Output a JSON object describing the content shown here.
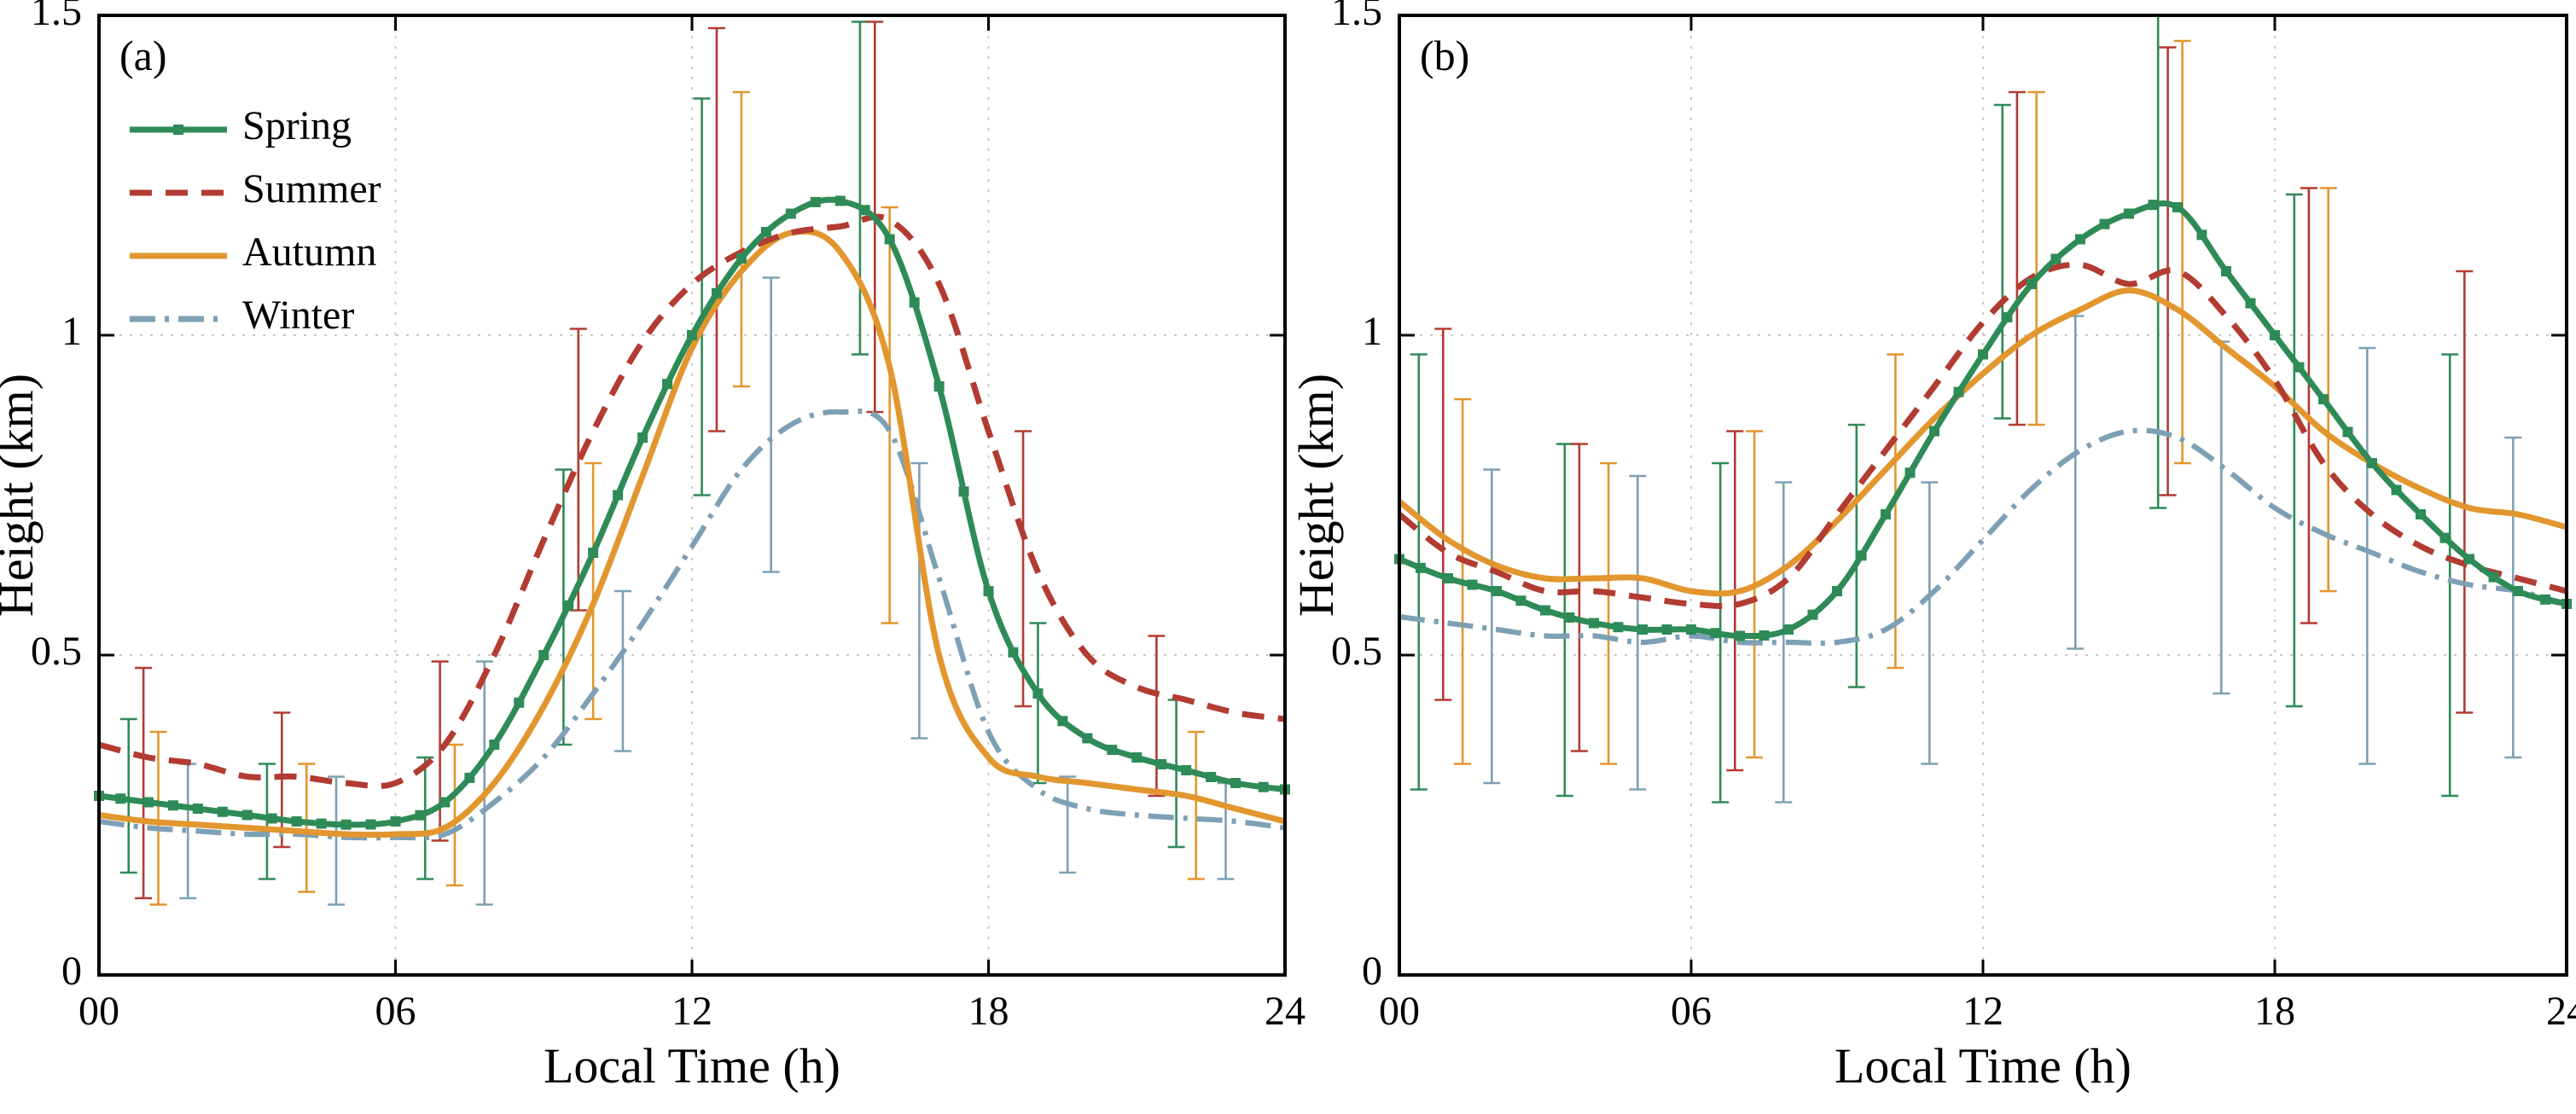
{
  "figure": {
    "background": "#ffffff",
    "axis_color": "#000000",
    "grid_color": "#c8c8c8",
    "xlabel": "Local Time (h)",
    "ylabel": "Height (km)",
    "xlim": [
      0,
      24
    ],
    "ylim": [
      0,
      1.5
    ],
    "x_ticks": {
      "values": [
        0,
        6,
        12,
        18,
        24
      ],
      "labels": [
        "00",
        "06",
        "12",
        "18",
        "24"
      ]
    },
    "y_ticks": {
      "values": [
        0,
        0.5,
        1,
        1.5
      ],
      "labels": [
        "0",
        "0.5",
        "1",
        "1.5"
      ]
    },
    "grid_x": [
      6,
      12,
      18
    ],
    "grid_y": [
      0.5,
      1.0
    ],
    "grid_style": "dotted",
    "legend_position": "upper-left"
  },
  "series_styles": [
    {
      "name": "Spring",
      "color": "#2e8b57",
      "dash": "solid",
      "marker": "square"
    },
    {
      "name": "Summer",
      "color": "#b23b32",
      "dash": "dashed",
      "marker": "none"
    },
    {
      "name": "Autumn",
      "color": "#e2962e",
      "dash": "solid",
      "marker": "none"
    },
    {
      "name": "Winter",
      "color": "#7ea0b5",
      "dash": "dashdot",
      "marker": "none"
    }
  ],
  "chart_data": [
    {
      "type": "line",
      "panel_label": "(a)",
      "legend": true,
      "xlabel": "Local Time (h)",
      "ylabel": "Height (km)",
      "xlim": [
        0,
        24
      ],
      "ylim": [
        0,
        1.5
      ],
      "x": [
        0,
        1,
        2,
        3,
        4,
        5,
        6,
        7,
        8,
        9,
        10,
        11,
        12,
        13,
        14,
        15,
        16,
        17,
        18,
        19,
        20,
        21,
        22,
        23,
        24
      ],
      "series": [
        {
          "name": "Spring",
          "values": [
            0.28,
            0.27,
            0.26,
            0.25,
            0.24,
            0.235,
            0.24,
            0.27,
            0.36,
            0.5,
            0.66,
            0.84,
            1.0,
            1.12,
            1.19,
            1.21,
            1.15,
            0.92,
            0.6,
            0.44,
            0.37,
            0.34,
            0.32,
            0.3,
            0.29
          ]
        },
        {
          "name": "Summer",
          "values": [
            0.36,
            0.34,
            0.33,
            0.31,
            0.31,
            0.3,
            0.3,
            0.36,
            0.5,
            0.68,
            0.85,
            0.99,
            1.08,
            1.13,
            1.16,
            1.17,
            1.18,
            1.08,
            0.85,
            0.63,
            0.5,
            0.45,
            0.43,
            0.41,
            0.4
          ]
        },
        {
          "name": "Autumn",
          "values": [
            0.25,
            0.24,
            0.235,
            0.23,
            0.225,
            0.22,
            0.22,
            0.23,
            0.3,
            0.42,
            0.58,
            0.78,
            0.98,
            1.1,
            1.16,
            1.13,
            0.95,
            0.5,
            0.34,
            0.31,
            0.3,
            0.29,
            0.28,
            0.26,
            0.24
          ]
        },
        {
          "name": "Winter",
          "values": [
            0.24,
            0.23,
            0.225,
            0.22,
            0.22,
            0.215,
            0.215,
            0.22,
            0.27,
            0.34,
            0.44,
            0.55,
            0.67,
            0.79,
            0.86,
            0.88,
            0.85,
            0.62,
            0.38,
            0.29,
            0.26,
            0.25,
            0.245,
            0.24,
            0.23
          ]
        }
      ],
      "error_bars": [
        {
          "series": "Spring",
          "points": [
            [
              0.6,
              0.16,
              0.4
            ],
            [
              3.4,
              0.15,
              0.33
            ],
            [
              6.6,
              0.15,
              0.34
            ],
            [
              9.4,
              0.36,
              0.79
            ],
            [
              12.2,
              0.75,
              1.37
            ],
            [
              15.4,
              0.97,
              1.49
            ],
            [
              19.0,
              0.3,
              0.55
            ],
            [
              21.8,
              0.2,
              0.43
            ]
          ]
        },
        {
          "series": "Summer",
          "points": [
            [
              0.9,
              0.12,
              0.48
            ],
            [
              3.7,
              0.2,
              0.41
            ],
            [
              6.9,
              0.21,
              0.49
            ],
            [
              9.7,
              0.57,
              1.01
            ],
            [
              12.5,
              0.85,
              1.48
            ],
            [
              15.7,
              0.88,
              1.49
            ],
            [
              18.7,
              0.42,
              0.85
            ],
            [
              21.4,
              0.28,
              0.53
            ]
          ]
        },
        {
          "series": "Autumn",
          "points": [
            [
              1.2,
              0.11,
              0.38
            ],
            [
              4.2,
              0.13,
              0.33
            ],
            [
              7.2,
              0.14,
              0.36
            ],
            [
              10.0,
              0.4,
              0.8
            ],
            [
              13.0,
              0.92,
              1.38
            ],
            [
              16.0,
              0.55,
              1.2
            ],
            [
              22.2,
              0.15,
              0.38
            ]
          ]
        },
        {
          "series": "Winter",
          "points": [
            [
              1.8,
              0.12,
              0.33
            ],
            [
              4.8,
              0.11,
              0.31
            ],
            [
              7.8,
              0.11,
              0.49
            ],
            [
              10.6,
              0.35,
              0.6
            ],
            [
              13.6,
              0.63,
              1.09
            ],
            [
              16.6,
              0.37,
              0.8
            ],
            [
              19.6,
              0.16,
              0.31
            ],
            [
              22.8,
              0.15,
              0.3
            ]
          ]
        }
      ]
    },
    {
      "type": "line",
      "panel_label": "(b)",
      "legend": false,
      "xlabel": "Local Time (h)",
      "ylabel": "Height (km)",
      "xlim": [
        0,
        24
      ],
      "ylim": [
        0,
        1.5
      ],
      "x": [
        0,
        1,
        2,
        3,
        4,
        5,
        6,
        7,
        8,
        9,
        10,
        11,
        12,
        13,
        14,
        15,
        16,
        17,
        18,
        19,
        20,
        21,
        22,
        23,
        24
      ],
      "series": [
        {
          "name": "Spring",
          "values": [
            0.65,
            0.62,
            0.6,
            0.57,
            0.55,
            0.54,
            0.54,
            0.53,
            0.54,
            0.6,
            0.72,
            0.85,
            0.97,
            1.08,
            1.15,
            1.19,
            1.2,
            1.1,
            1.0,
            0.9,
            0.8,
            0.72,
            0.65,
            0.6,
            0.58
          ]
        },
        {
          "name": "Summer",
          "values": [
            0.72,
            0.66,
            0.63,
            0.6,
            0.6,
            0.59,
            0.58,
            0.58,
            0.62,
            0.72,
            0.82,
            0.92,
            1.02,
            1.09,
            1.11,
            1.08,
            1.1,
            1.03,
            0.93,
            0.8,
            0.72,
            0.67,
            0.64,
            0.62,
            0.6
          ]
        },
        {
          "name": "Autumn",
          "values": [
            0.74,
            0.68,
            0.64,
            0.62,
            0.62,
            0.62,
            0.6,
            0.6,
            0.64,
            0.71,
            0.79,
            0.87,
            0.94,
            1.0,
            1.04,
            1.07,
            1.04,
            0.98,
            0.92,
            0.85,
            0.8,
            0.76,
            0.73,
            0.72,
            0.7
          ]
        },
        {
          "name": "Winter",
          "values": [
            0.56,
            0.55,
            0.54,
            0.53,
            0.53,
            0.52,
            0.53,
            0.52,
            0.52,
            0.52,
            0.54,
            0.6,
            0.68,
            0.76,
            0.82,
            0.85,
            0.84,
            0.79,
            0.73,
            0.69,
            0.66,
            0.63,
            0.61,
            0.6,
            0.58
          ]
        }
      ],
      "error_bars": [
        {
          "series": "Spring",
          "points": [
            [
              0.4,
              0.29,
              0.97
            ],
            [
              3.4,
              0.28,
              0.83
            ],
            [
              6.6,
              0.27,
              0.8
            ],
            [
              9.4,
              0.45,
              0.86
            ],
            [
              12.4,
              0.87,
              1.36
            ],
            [
              15.6,
              0.73,
              1.5
            ],
            [
              18.4,
              0.42,
              1.22
            ],
            [
              21.6,
              0.28,
              0.97
            ]
          ]
        },
        {
          "series": "Summer",
          "points": [
            [
              0.9,
              0.43,
              1.01
            ],
            [
              3.7,
              0.35,
              0.83
            ],
            [
              6.9,
              0.32,
              0.85
            ],
            [
              12.7,
              0.86,
              1.38
            ],
            [
              15.8,
              0.75,
              1.45
            ],
            [
              18.7,
              0.55,
              1.23
            ],
            [
              21.9,
              0.41,
              1.1
            ]
          ]
        },
        {
          "series": "Autumn",
          "points": [
            [
              1.3,
              0.33,
              0.9
            ],
            [
              4.3,
              0.33,
              0.8
            ],
            [
              7.3,
              0.34,
              0.85
            ],
            [
              10.2,
              0.48,
              0.97
            ],
            [
              13.1,
              0.86,
              1.38
            ],
            [
              16.1,
              0.8,
              1.46
            ],
            [
              19.1,
              0.6,
              1.23
            ]
          ]
        },
        {
          "series": "Winter",
          "points": [
            [
              1.9,
              0.3,
              0.79
            ],
            [
              4.9,
              0.29,
              0.78
            ],
            [
              7.9,
              0.27,
              0.77
            ],
            [
              10.9,
              0.33,
              0.77
            ],
            [
              13.9,
              0.51,
              1.03
            ],
            [
              16.9,
              0.44,
              0.99
            ],
            [
              19.9,
              0.33,
              0.98
            ],
            [
              22.9,
              0.34,
              0.84
            ]
          ]
        }
      ]
    }
  ]
}
